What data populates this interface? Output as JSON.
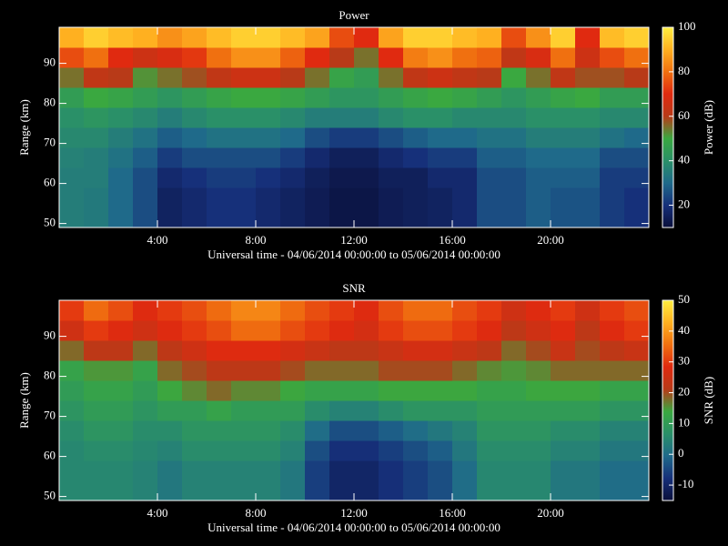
{
  "chart_data": [
    {
      "type": "heatmap",
      "title": "Power",
      "x_label": "Universal time - 04/06/2014 00:00:00 to 05/06/2014 00:00:00",
      "y_label": "Range (km)",
      "colorbar_label": "Power (dB)",
      "x": [
        0.5,
        1.5,
        2.5,
        3.5,
        4.5,
        5.5,
        6.5,
        7.5,
        8.5,
        9.5,
        10.5,
        11.5,
        12.5,
        13.5,
        14.5,
        15.5,
        16.5,
        17.5,
        18.5,
        19.5,
        20.5,
        21.5,
        22.5,
        23.5
      ],
      "y": [
        51.5,
        56.5,
        61.5,
        66.5,
        71.5,
        76.5,
        81.5,
        86.5,
        91.5,
        96.5
      ],
      "values": [
        [
          35,
          34,
          30,
          25,
          16,
          18,
          20,
          20,
          18,
          16,
          14,
          12,
          12,
          14,
          15,
          16,
          18,
          25,
          25,
          28,
          26,
          26,
          22,
          20
        ],
        [
          35,
          34,
          30,
          25,
          16,
          18,
          20,
          20,
          18,
          16,
          14,
          12,
          12,
          14,
          15,
          16,
          18,
          25,
          25,
          28,
          26,
          26,
          22,
          20
        ],
        [
          35,
          35,
          30,
          25,
          18,
          20,
          22,
          22,
          20,
          18,
          15,
          13,
          13,
          15,
          15,
          18,
          18,
          25,
          25,
          28,
          28,
          28,
          22,
          22
        ],
        [
          36,
          35,
          32,
          28,
          22,
          25,
          25,
          25,
          25,
          22,
          18,
          15,
          15,
          18,
          20,
          22,
          22,
          28,
          28,
          30,
          30,
          30,
          25,
          25
        ],
        [
          38,
          38,
          35,
          32,
          28,
          30,
          32,
          32,
          32,
          30,
          25,
          22,
          22,
          25,
          28,
          30,
          30,
          32,
          32,
          35,
          35,
          35,
          32,
          30
        ],
        [
          40,
          42,
          40,
          38,
          35,
          38,
          40,
          40,
          40,
          38,
          35,
          35,
          35,
          38,
          40,
          40,
          38,
          38,
          38,
          40,
          40,
          40,
          38,
          38
        ],
        [
          45,
          50,
          48,
          45,
          42,
          45,
          48,
          50,
          50,
          48,
          45,
          42,
          42,
          45,
          48,
          50,
          48,
          45,
          42,
          45,
          48,
          50,
          45,
          45
        ],
        [
          55,
          62,
          60,
          52,
          55,
          58,
          62,
          65,
          65,
          60,
          55,
          48,
          45,
          55,
          62,
          65,
          62,
          60,
          50,
          55,
          62,
          58,
          58,
          60
        ],
        [
          75,
          80,
          70,
          65,
          68,
          72,
          80,
          85,
          85,
          78,
          70,
          60,
          55,
          70,
          82,
          85,
          80,
          78,
          62,
          68,
          80,
          65,
          75,
          80
        ],
        [
          90,
          95,
          92,
          90,
          85,
          88,
          92,
          95,
          95,
          92,
          88,
          75,
          70,
          88,
          95,
          95,
          92,
          90,
          75,
          85,
          95,
          70,
          92,
          95
        ]
      ],
      "xlim": [
        0,
        24
      ],
      "xticks": [
        {
          "value": 4,
          "label": "4:00"
        },
        {
          "value": 8,
          "label": "8:00"
        },
        {
          "value": 12,
          "label": "12:00"
        },
        {
          "value": 16,
          "label": "16:00"
        },
        {
          "value": 20,
          "label": "20:00"
        }
      ],
      "ylim": [
        49,
        99
      ],
      "yticks": [
        50,
        60,
        70,
        80,
        90
      ],
      "zlim": [
        10,
        100
      ],
      "zticks": [
        20,
        40,
        60,
        80,
        100
      ],
      "colormap": [
        "#0a0f3a",
        "#16307a",
        "#1f6a8a",
        "#2a9068",
        "#3aa840",
        "#b83a18",
        "#e02a10",
        "#f07010",
        "#ffb020",
        "#ffee40"
      ]
    },
    {
      "type": "heatmap",
      "title": "SNR",
      "x_label": "Universal time - 04/06/2014 00:00:00 to 05/06/2014 00:00:00",
      "y_label": "Range (km)",
      "colorbar_label": "SNR (dB)",
      "x": [
        0.5,
        1.5,
        2.5,
        3.5,
        4.5,
        5.5,
        6.5,
        7.5,
        8.5,
        9.5,
        10.5,
        11.5,
        12.5,
        13.5,
        14.5,
        15.5,
        16.5,
        17.5,
        18.5,
        19.5,
        20.5,
        21.5,
        22.5,
        23.5
      ],
      "y": [
        51.5,
        56.5,
        61.5,
        66.5,
        71.5,
        76.5,
        81.5,
        86.5,
        91.5,
        96.5
      ],
      "values": [
        [
          5,
          5,
          5,
          4,
          2,
          4,
          4,
          4,
          4,
          2,
          -6,
          -10,
          -10,
          -8,
          -6,
          -4,
          0,
          5,
          5,
          5,
          2,
          2,
          0,
          0
        ],
        [
          5,
          5,
          5,
          4,
          2,
          4,
          4,
          4,
          4,
          2,
          -6,
          -10,
          -10,
          -8,
          -6,
          -4,
          0,
          5,
          5,
          5,
          2,
          2,
          0,
          0
        ],
        [
          5,
          6,
          6,
          5,
          4,
          6,
          6,
          6,
          6,
          4,
          -4,
          -8,
          -8,
          -6,
          -4,
          -2,
          2,
          6,
          6,
          6,
          4,
          4,
          2,
          2
        ],
        [
          6,
          8,
          8,
          6,
          6,
          8,
          8,
          8,
          8,
          6,
          0,
          -4,
          -4,
          -2,
          0,
          2,
          4,
          8,
          8,
          8,
          6,
          6,
          4,
          4
        ],
        [
          8,
          10,
          10,
          8,
          10,
          10,
          12,
          10,
          10,
          10,
          6,
          4,
          4,
          6,
          8,
          8,
          8,
          10,
          10,
          10,
          10,
          10,
          8,
          8
        ],
        [
          10,
          12,
          12,
          10,
          14,
          16,
          18,
          16,
          16,
          14,
          12,
          12,
          12,
          14,
          14,
          14,
          14,
          12,
          12,
          14,
          14,
          14,
          12,
          12
        ],
        [
          12,
          15,
          15,
          12,
          18,
          20,
          22,
          22,
          22,
          20,
          18,
          18,
          18,
          20,
          20,
          20,
          18,
          16,
          15,
          16,
          18,
          18,
          18,
          18
        ],
        [
          18,
          22,
          22,
          18,
          22,
          25,
          28,
          28,
          28,
          26,
          24,
          22,
          22,
          24,
          26,
          26,
          24,
          22,
          18,
          20,
          24,
          20,
          22,
          24
        ],
        [
          25,
          30,
          28,
          25,
          28,
          30,
          32,
          35,
          35,
          32,
          30,
          28,
          26,
          30,
          32,
          32,
          30,
          28,
          22,
          25,
          28,
          22,
          28,
          30
        ],
        [
          30,
          35,
          32,
          28,
          30,
          32,
          35,
          38,
          38,
          35,
          32,
          30,
          28,
          32,
          35,
          35,
          32,
          30,
          25,
          28,
          30,
          25,
          30,
          32
        ]
      ],
      "xlim": [
        0,
        24
      ],
      "xticks": [
        {
          "value": 4,
          "label": "4:00"
        },
        {
          "value": 8,
          "label": "8:00"
        },
        {
          "value": 12,
          "label": "12:00"
        },
        {
          "value": 16,
          "label": "16:00"
        },
        {
          "value": 20,
          "label": "20:00"
        }
      ],
      "ylim": [
        49,
        99
      ],
      "yticks": [
        50,
        60,
        70,
        80,
        90
      ],
      "zlim": [
        -15,
        50
      ],
      "zticks": [
        -10,
        0,
        10,
        20,
        30,
        40,
        50
      ],
      "colormap": [
        "#0a0f3a",
        "#16307a",
        "#1f6a8a",
        "#2a9068",
        "#3aa840",
        "#b83a18",
        "#e02a10",
        "#f07010",
        "#ffb020",
        "#ffee40"
      ]
    }
  ]
}
